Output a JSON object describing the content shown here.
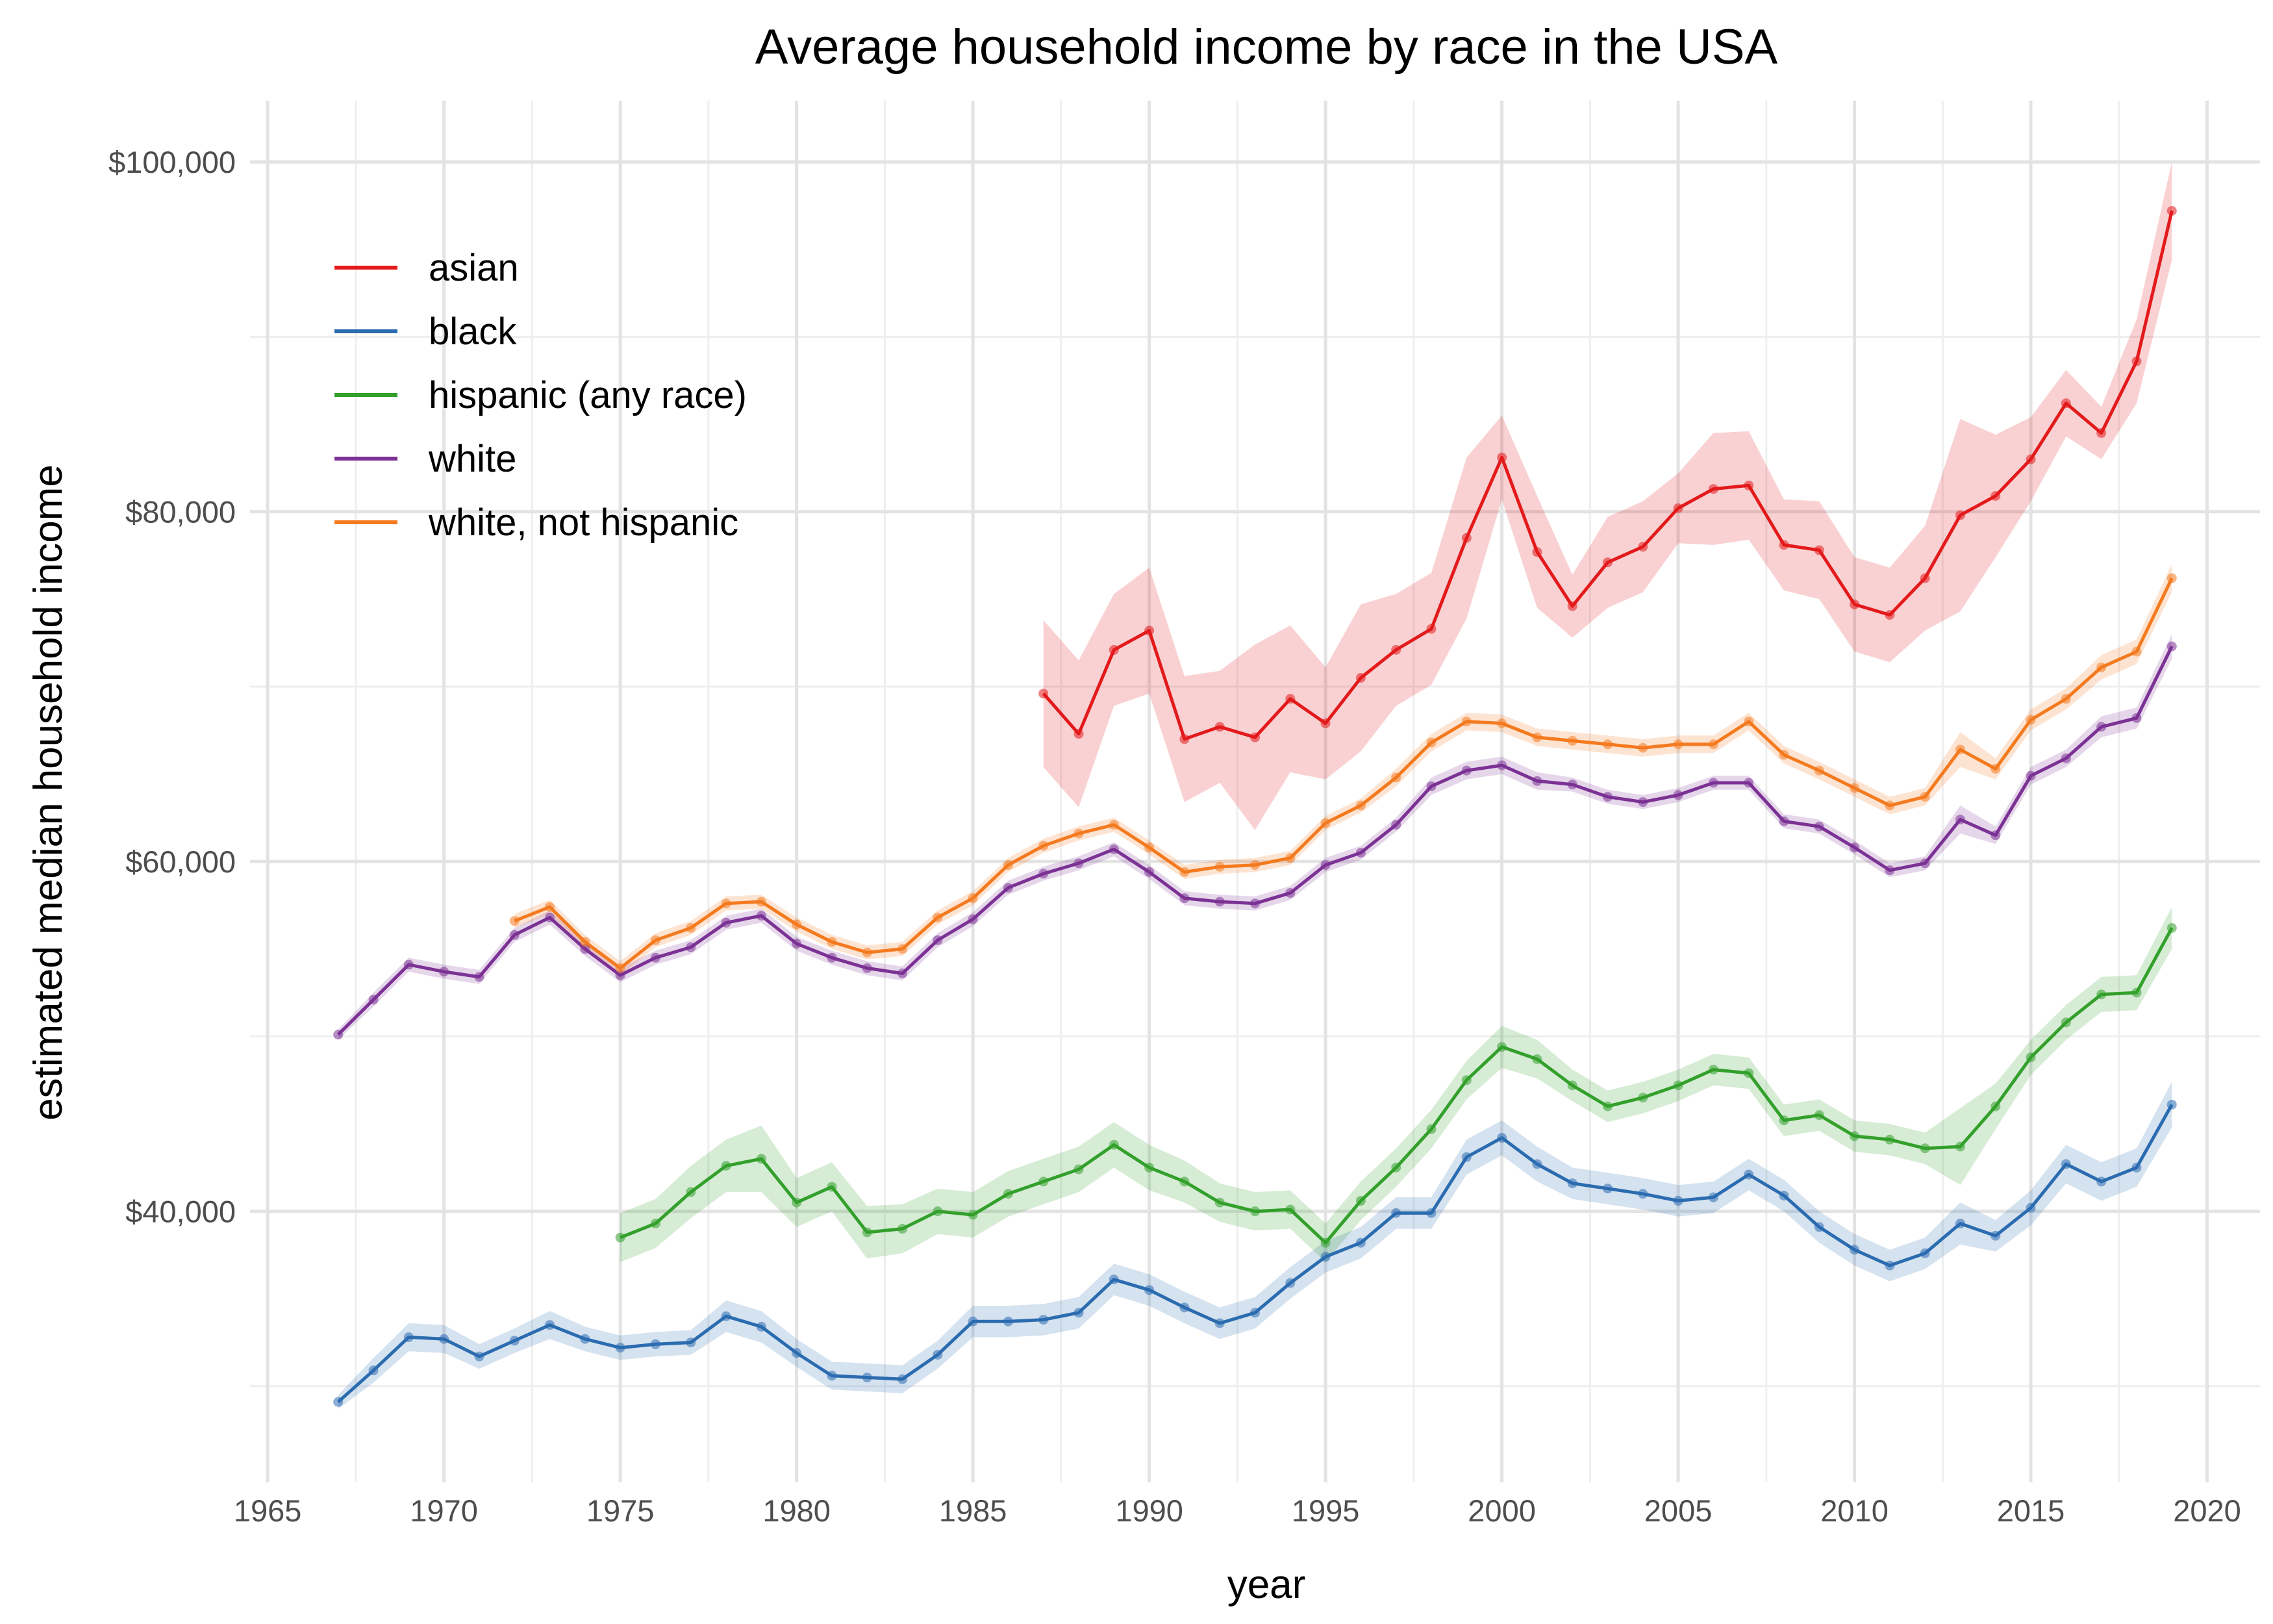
{
  "chart_data": {
    "type": "line",
    "title": "Average household income by race in the USA",
    "xlabel": "year",
    "ylabel": "estimated median household income",
    "xlim": [
      1964.5,
      2021.5
    ],
    "ylim": [
      24500,
      103500
    ],
    "x_ticks": [
      1965,
      1970,
      1975,
      1980,
      1985,
      1990,
      1995,
      2000,
      2005,
      2010,
      2015,
      2020
    ],
    "x_tick_labels": [
      "1965",
      "1970",
      "1975",
      "1980",
      "1985",
      "1990",
      "1995",
      "2000",
      "2005",
      "2010",
      "2015",
      "2020"
    ],
    "y_ticks": [
      40000,
      60000,
      80000,
      100000
    ],
    "y_tick_labels": [
      "$40,000",
      "$60,000",
      "$80,000",
      "$100,000"
    ],
    "y_minor_ticks": [
      30000,
      50000,
      70000,
      90000
    ],
    "grid": true,
    "legend_position": "top-left",
    "confidence_bands": true,
    "series": [
      {
        "name": "asian",
        "color": "#E31A1C",
        "x_start": 1987,
        "values": [
          69600,
          67300,
          72100,
          73200,
          67000,
          67700,
          67100,
          69300,
          67900,
          70500,
          72100,
          73300,
          78500,
          83100,
          77700,
          74600,
          77100,
          78000,
          80200,
          81300,
          81500,
          78100,
          77800,
          74700,
          74100,
          76200,
          79800,
          80900,
          83000,
          86200,
          84500,
          88600,
          97200
        ],
        "band": [
          4200,
          4200,
          3200,
          3600,
          3600,
          3200,
          5300,
          4200,
          3200,
          4200,
          3200,
          3200,
          4600,
          2400,
          3200,
          1800,
          2600,
          2600,
          2000,
          3200,
          3100,
          2600,
          2800,
          2700,
          2700,
          3000,
          5500,
          3500,
          2400,
          1900,
          1500,
          2400,
          2800
        ]
      },
      {
        "name": "black",
        "color": "#2B6CB0",
        "x_start": 1967,
        "values": [
          29100,
          30900,
          32800,
          32700,
          31700,
          32600,
          33500,
          32700,
          32200,
          32400,
          32500,
          34000,
          33400,
          31900,
          30600,
          30500,
          30400,
          31800,
          33700,
          33700,
          33800,
          34200,
          36100,
          35500,
          34500,
          33600,
          34200,
          35900,
          37400,
          38200,
          39900,
          39900,
          43100,
          44200,
          42700,
          41600,
          41300,
          41000,
          40600,
          40800,
          42100,
          40900,
          39100,
          37800,
          36900,
          37600,
          39300,
          38600,
          40200,
          42700,
          41700,
          42500,
          46100
        ],
        "band": [
          400,
          700,
          800,
          800,
          700,
          700,
          800,
          700,
          700,
          700,
          700,
          900,
          900,
          800,
          800,
          800,
          800,
          800,
          900,
          900,
          900,
          900,
          900,
          900,
          900,
          900,
          900,
          900,
          900,
          900,
          900,
          900,
          1000,
          1000,
          1000,
          900,
          900,
          900,
          900,
          900,
          900,
          900,
          900,
          900,
          900,
          900,
          1200,
          900,
          1000,
          1100,
          1100,
          1100,
          1300
        ]
      },
      {
        "name": "hispanic (any race)",
        "color": "#33A02C",
        "x_start": 1975,
        "values": [
          38500,
          39300,
          41100,
          42600,
          43000,
          40500,
          41400,
          38800,
          39000,
          40000,
          39800,
          41000,
          41700,
          42400,
          43800,
          42500,
          41700,
          40500,
          40000,
          40100,
          38200,
          40600,
          42500,
          44700,
          47500,
          49400,
          48700,
          47200,
          46000,
          46500,
          47200,
          48100,
          47900,
          45200,
          45500,
          44300,
          44100,
          43600,
          43700,
          46000,
          48800,
          50800,
          52400,
          52500,
          56200
        ],
        "band": [
          1400,
          1400,
          1500,
          1500,
          1900,
          1400,
          1400,
          1500,
          1400,
          1300,
          1300,
          1300,
          1300,
          1300,
          1300,
          1300,
          1200,
          1100,
          1100,
          1100,
          1100,
          1100,
          1100,
          1100,
          1100,
          1200,
          1100,
          900,
          900,
          900,
          900,
          900,
          900,
          900,
          900,
          900,
          900,
          900,
          2200,
          1300,
          1000,
          1000,
          1000,
          1000,
          1200
        ]
      },
      {
        "name": "white",
        "color": "#7B3294",
        "x_start": 1967,
        "values": [
          50100,
          52100,
          54100,
          53700,
          53400,
          55800,
          56800,
          55000,
          53500,
          54500,
          55100,
          56500,
          56900,
          55300,
          54500,
          53900,
          53600,
          55500,
          56700,
          58500,
          59300,
          59900,
          60700,
          59400,
          57900,
          57700,
          57600,
          58200,
          59800,
          60500,
          62100,
          64300,
          65200,
          65500,
          64600,
          64400,
          63700,
          63400,
          63800,
          64500,
          64500,
          62300,
          62000,
          60800,
          59500,
          59900,
          62400,
          61500,
          64900,
          65900,
          67700,
          68200,
          72300
        ],
        "band": [
          300,
          400,
          400,
          400,
          400,
          400,
          400,
          400,
          400,
          400,
          400,
          400,
          400,
          400,
          400,
          400,
          400,
          400,
          400,
          400,
          400,
          400,
          400,
          400,
          400,
          400,
          400,
          400,
          400,
          400,
          400,
          500,
          500,
          500,
          500,
          400,
          400,
          400,
          400,
          400,
          400,
          400,
          400,
          400,
          400,
          400,
          800,
          500,
          500,
          500,
          600,
          600,
          700
        ]
      },
      {
        "name": "white, not hispanic",
        "color": "#F47A1F",
        "x_start": 1972,
        "values": [
          56600,
          57400,
          55400,
          53900,
          55500,
          56200,
          57600,
          57700,
          56400,
          55400,
          54800,
          55000,
          56800,
          57900,
          59800,
          60900,
          61600,
          62100,
          60800,
          59400,
          59700,
          59800,
          60200,
          62200,
          63200,
          64800,
          66800,
          68000,
          67900,
          67100,
          66900,
          66700,
          66500,
          66700,
          66700,
          68000,
          66100,
          65200,
          64200,
          63200,
          63700,
          66400,
          65300,
          68100,
          69300,
          71100,
          72000,
          76200
        ],
        "band": [
          400,
          400,
          400,
          400,
          400,
          400,
          400,
          400,
          400,
          400,
          400,
          400,
          400,
          400,
          400,
          400,
          400,
          400,
          400,
          400,
          400,
          400,
          400,
          400,
          400,
          500,
          500,
          500,
          500,
          500,
          500,
          500,
          500,
          500,
          500,
          500,
          500,
          500,
          500,
          500,
          500,
          1000,
          600,
          600,
          600,
          700,
          700,
          800
        ]
      }
    ]
  }
}
